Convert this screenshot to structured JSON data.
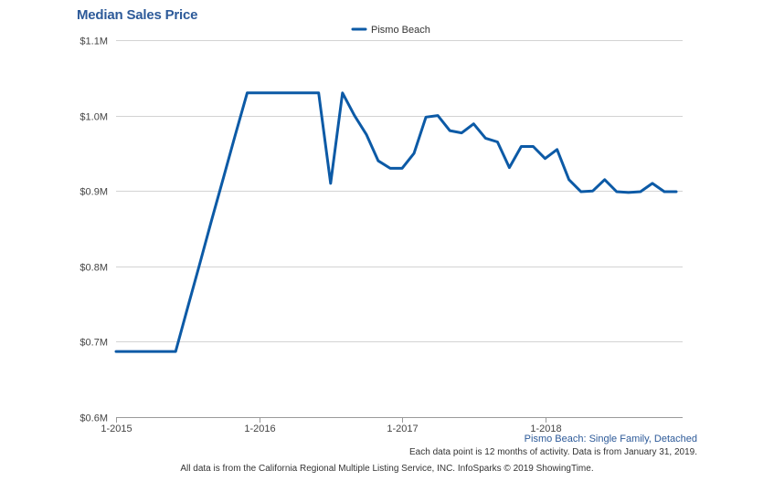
{
  "chart_data": {
    "type": "line",
    "title": "Median Sales Price",
    "xlabel": "",
    "ylabel": "",
    "ylim": [
      0.6,
      1.1
    ],
    "y_unit_prefix": "$",
    "y_unit_suffix": "M",
    "yticks": [
      {
        "value": 0.6,
        "label": "$0.6M"
      },
      {
        "value": 0.7,
        "label": "$0.7M"
      },
      {
        "value": 0.8,
        "label": "$0.8M"
      },
      {
        "value": 0.9,
        "label": "$0.9M"
      },
      {
        "value": 1.0,
        "label": "$1.0M"
      },
      {
        "value": 1.1,
        "label": "$1.1M"
      }
    ],
    "xlim_months": [
      0,
      47
    ],
    "xticks": [
      {
        "month": 0,
        "label": "1-2015"
      },
      {
        "month": 12,
        "label": "1-2016"
      },
      {
        "month": 24,
        "label": "1-2017"
      },
      {
        "month": 36,
        "label": "1-2018"
      }
    ],
    "grid": true,
    "legend_position": "top-center",
    "series": [
      {
        "name": "Pismo Beach",
        "color": "#0c5aa6",
        "x_months": [
          0,
          1,
          2,
          3,
          4,
          5,
          6,
          7,
          8,
          9,
          10,
          11,
          12,
          13,
          14,
          15,
          16,
          17,
          18,
          19,
          20,
          21,
          22,
          23,
          24,
          25,
          26,
          27,
          28,
          29,
          30,
          31,
          32,
          33,
          34,
          35,
          36,
          37,
          38,
          39,
          40,
          41,
          42,
          43,
          44,
          45,
          46,
          47
        ],
        "values": [
          0.687,
          0.687,
          0.687,
          0.687,
          0.687,
          0.687,
          0.745,
          0.802,
          0.86,
          0.917,
          0.974,
          1.03,
          1.03,
          1.03,
          1.03,
          1.03,
          1.03,
          1.03,
          0.91,
          1.03,
          1.0,
          0.975,
          0.94,
          0.93,
          0.93,
          0.95,
          0.998,
          1.0,
          0.98,
          0.977,
          0.989,
          0.97,
          0.965,
          0.931,
          0.959,
          0.959,
          0.943,
          0.955,
          0.915,
          0.899,
          0.9,
          0.915,
          0.899,
          0.898,
          0.899,
          0.91,
          0.899,
          0.899
        ]
      }
    ]
  },
  "notes": {
    "series_description": "Pismo Beach: Single Family, Detached",
    "period_note": "Each data point is 12 months of activity. Data is from January 31, 2019.",
    "source_note": "All data is from the California Regional Multiple Listing Service, INC. InfoSparks © 2019 ShowingTime."
  }
}
